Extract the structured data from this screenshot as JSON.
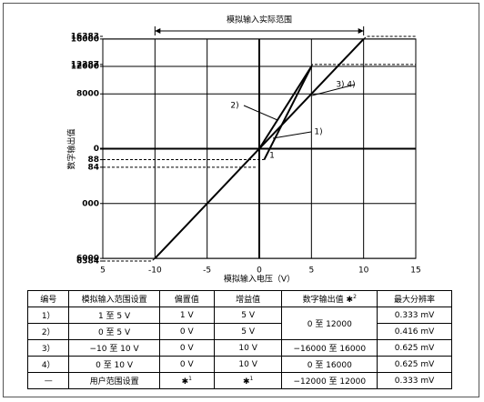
{
  "chart_data": {
    "type": "line",
    "title": "模拟输入实际范围",
    "x_label": "模拟输入电压（V）",
    "y_label": "数字输出值",
    "xlim": [
      -15,
      15
    ],
    "xticks": [
      {
        "value": -15,
        "label": "5"
      },
      -10,
      -5,
      0,
      5,
      10,
      15
    ],
    "ylim": [
      -16384,
      16383
    ],
    "yticks": [
      16383,
      16000,
      12287,
      12000,
      8000,
      0,
      {
        "value": -1600,
        "label": "88"
      },
      {
        "value": -2700,
        "label": "84"
      },
      {
        "value": -8000,
        "label": "000"
      },
      {
        "value": -16000,
        "label": "6000"
      },
      {
        "value": -16384,
        "label": "6384"
      }
    ],
    "grid": true,
    "series": [
      {
        "color": "#000000",
        "x": [
          -10,
          10
        ],
        "values": [
          -16000,
          16000
        ]
      },
      {
        "color": "#000000",
        "x": [
          0.47,
          5
        ],
        "values": [
          -1600,
          12000
        ]
      },
      {
        "color": "#000000",
        "x": [
          0,
          5
        ],
        "values": [
          0,
          12000
        ]
      },
      {
        "color": "#000000",
        "dashed": true,
        "x": [
          -15,
          -10.3,
          -10
        ],
        "values": [
          -16384,
          -16384,
          -16000
        ]
      },
      {
        "color": "#000000",
        "dashed": true,
        "x": [
          10,
          10.3,
          15
        ],
        "values": [
          16000,
          16383,
          16383
        ]
      },
      {
        "color": "#000000",
        "dashed": true,
        "x": [
          5,
          5.1,
          15
        ],
        "values": [
          12000,
          12287,
          12287
        ]
      },
      {
        "color": "#000000",
        "dashed": true,
        "x": [
          -15,
          0.47
        ],
        "values": [
          -1600,
          -1600
        ]
      },
      {
        "color": "#000000",
        "dashed": true,
        "x": [
          -15,
          -0.2
        ],
        "values": [
          -2700,
          -2700
        ]
      }
    ],
    "annotations": [
      "2)",
      "1)",
      "3) 4)",
      "1"
    ]
  },
  "table": {
    "header": [
      "编号",
      "模拟输入范围设置",
      "偏置值",
      "增益值",
      {
        "text": "数字输出值 ✱",
        "note": "2"
      },
      "最大分辨率"
    ],
    "rows": [
      {
        "no": "1）",
        "range": "1 至 5 V",
        "offset": "1 V",
        "gain": "5 V",
        "output": "0 至 12000",
        "resolution": "0.333 mV"
      },
      {
        "no": "2）",
        "range": "0 至 5 V",
        "offset": "0 V",
        "gain": "5 V",
        "resolution": "0.416 mV"
      },
      {
        "no": "3）",
        "range": "−10 至 10 V",
        "offset": "0 V",
        "gain": "10 V",
        "output": "−16000 至 16000",
        "resolution": "0.625 mV"
      },
      {
        "no": "4）",
        "range": "0 至 10 V",
        "offset": "0 V",
        "gain": "10 V",
        "output": "0 至 16000",
        "resolution": "0.625 mV"
      },
      {
        "no": "—",
        "range": "用户范围设置",
        "offset": {
          "text": "✱",
          "note": "1"
        },
        "gain": {
          "text": "✱",
          "note": "1"
        },
        "output": "−12000 至 12000",
        "resolution": "0.333 mV"
      }
    ]
  }
}
